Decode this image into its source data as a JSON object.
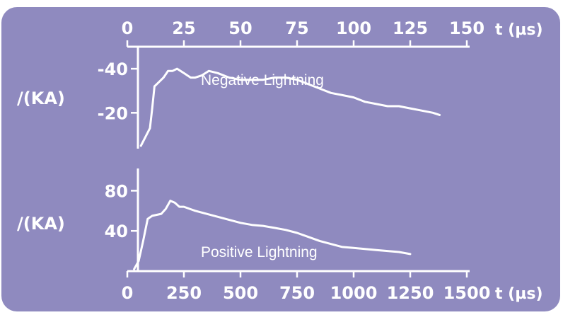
{
  "colors": {
    "panel": "#8f8abf",
    "ink": "#ffffff"
  },
  "chart_data": [
    {
      "type": "line",
      "x_axis_position": "top",
      "xlim": [
        0,
        150
      ],
      "ylim": [
        -5,
        -50
      ],
      "xticks": [
        0,
        25,
        50,
        75,
        100,
        125,
        150
      ],
      "x_tick_labels": [
        "0",
        "25",
        "50",
        "75",
        "100",
        "125",
        "150"
      ],
      "xlabel": "t (µs)",
      "yticks": [
        -20,
        -40
      ],
      "y_tick_labels": [
        "-20",
        "-40"
      ],
      "ylabel": "/(KA)",
      "annotation": "Negative Lightning",
      "series": [
        {
          "x": [
            6,
            8,
            10,
            11,
            12,
            13,
            14,
            16,
            18,
            20,
            22,
            25,
            28,
            30,
            33,
            36,
            40,
            45,
            50,
            55,
            60,
            65,
            70,
            75,
            80,
            85,
            90,
            95,
            100,
            105,
            110,
            115,
            120,
            125,
            130,
            135,
            138
          ],
          "y": [
            -5,
            -9,
            -13,
            -22,
            -32,
            -33,
            -34,
            -36,
            -39,
            -39,
            -40,
            -38,
            -36,
            -36,
            -37,
            -39,
            -38,
            -36,
            -35,
            -35,
            -35,
            -36,
            -36,
            -35,
            -33,
            -31,
            -29,
            -28,
            -27,
            -25,
            -24,
            -23,
            -23,
            -22,
            -21,
            -20,
            -19
          ]
        }
      ]
    },
    {
      "type": "line",
      "x_axis_position": "bottom",
      "xlim": [
        0,
        1500
      ],
      "ylim": [
        0,
        100
      ],
      "xticks": [
        0,
        250,
        500,
        750,
        1000,
        1250,
        1500
      ],
      "x_tick_labels": [
        "0",
        "250",
        "500",
        "750",
        "1000",
        "1250",
        "1500"
      ],
      "xlabel": "t (µs)",
      "yticks": [
        40,
        80
      ],
      "y_tick_labels": [
        "40",
        "80"
      ],
      "ylabel": "/(KA)",
      "annotation": "Positive Lightning",
      "series": [
        {
          "x": [
            30,
            50,
            70,
            90,
            110,
            130,
            150,
            170,
            190,
            210,
            230,
            250,
            275,
            300,
            350,
            400,
            450,
            500,
            550,
            600,
            650,
            700,
            750,
            800,
            850,
            900,
            950,
            1000,
            1050,
            1100,
            1150,
            1200,
            1250
          ],
          "y": [
            2,
            10,
            30,
            52,
            55,
            56,
            57,
            62,
            70,
            68,
            64,
            64,
            62,
            60,
            57,
            54,
            51,
            48,
            46,
            45,
            43,
            41,
            38,
            34,
            30,
            27,
            24,
            23,
            22,
            21,
            20,
            19,
            17
          ]
        }
      ]
    }
  ]
}
